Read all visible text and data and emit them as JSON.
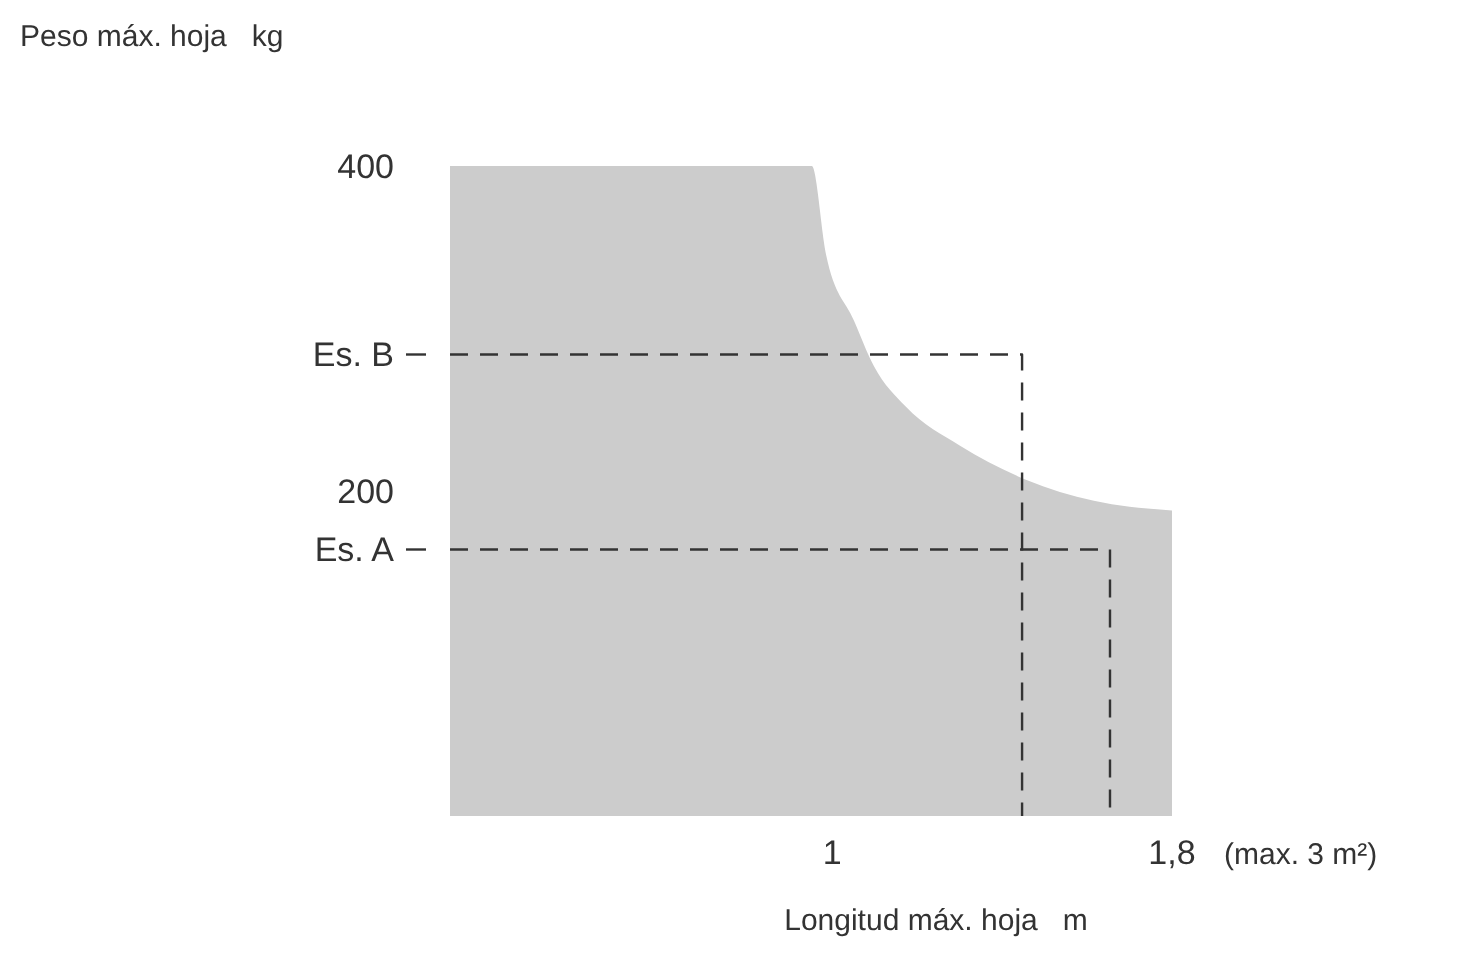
{
  "chart_data": {
    "type": "area",
    "xlabel": "Longitud máx. hoja   m",
    "ylabel": "Peso máx. hoja   kg",
    "annotations": [
      "(max. 3 m²)"
    ],
    "xlim": [
      0.1,
      1.8
    ],
    "xticks": [
      1,
      {
        "value": 1.8,
        "label": "1,8"
      }
    ],
    "ylim": [
      0,
      400
    ],
    "yticks": [
      400,
      200,
      {
        "value": 284,
        "label": "Es. B"
      },
      {
        "value": 164,
        "label": "Es. A"
      }
    ],
    "series": [
      {
        "color": "#cccccc",
        "x": [
          0.1,
          0.952,
          0.985,
          1.051,
          1.098,
          1.173,
          1.3,
          1.456,
          1.616,
          1.8
        ],
        "values": [
          400,
          400,
          346,
          305,
          277,
          252,
          228,
          207,
          194,
          188
        ]
      },
      {
        "type": "line",
        "color": "#333333",
        "line_style": "dashed",
        "x": [
          0.1,
          1.447,
          1.447
        ],
        "values": [
          284,
          284,
          0
        ]
      },
      {
        "type": "line",
        "color": "#333333",
        "line_style": "dashed",
        "x": [
          0.1,
          1.654,
          1.654
        ],
        "values": [
          164,
          164,
          0
        ]
      }
    ]
  }
}
